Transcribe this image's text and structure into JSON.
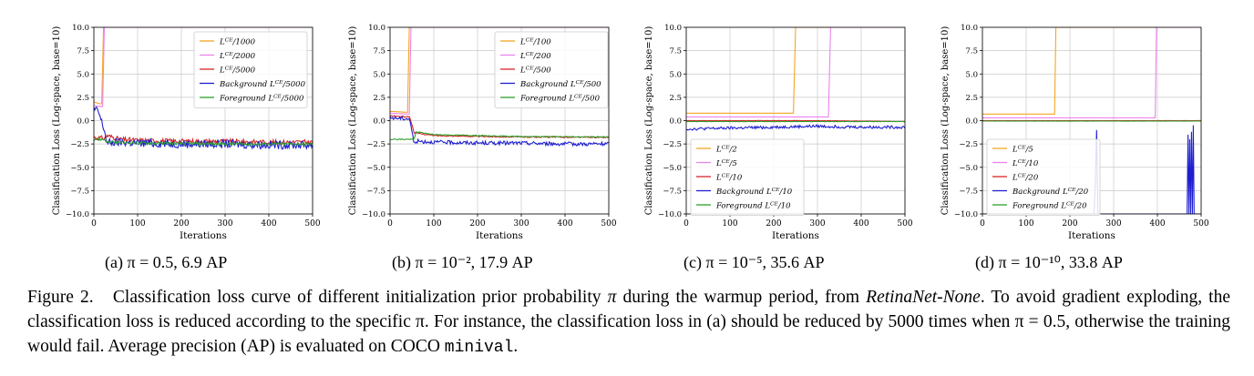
{
  "chart_data": [
    {
      "type": "line",
      "panel": "(a) π = 0.5, 6.9 AP",
      "xlabel": "Iterations",
      "ylabel": "Classification Loss (Log-space, base=10)",
      "xlim": [
        0,
        500
      ],
      "ylim": [
        -10,
        10
      ],
      "xticks": [
        0,
        100,
        200,
        300,
        400,
        500
      ],
      "yticks": [
        "−10.0",
        "−7.5",
        "−5.0",
        "−2.5",
        "0.0",
        "2.5",
        "5.0",
        "7.5",
        "10.0"
      ],
      "grid": true,
      "legend_position": "top-right",
      "series": [
        {
          "name": "L^CE/1000",
          "color": "#f5a623",
          "x": [
            0,
            14,
            18,
            22,
            500
          ],
          "y": [
            2.0,
            1.8,
            1.8,
            10,
            10
          ]
        },
        {
          "name": "L^CE/2000",
          "color": "#ee82ee",
          "x": [
            0,
            16,
            20,
            24,
            500
          ],
          "y": [
            1.6,
            1.5,
            1.5,
            10,
            10
          ]
        },
        {
          "name": "L^CE/5000",
          "color": "#d62728",
          "noise": 0.25,
          "x": [
            0,
            25,
            30,
            60,
            100,
            200,
            300,
            400,
            500
          ],
          "y": [
            -1.8,
            -1.9,
            -1.6,
            -2.0,
            -2.1,
            -2.2,
            -2.2,
            -2.3,
            -2.3
          ]
        },
        {
          "name": "Background L^CE/5000",
          "color": "#1f1fd0",
          "noise": 0.45,
          "x": [
            0,
            10,
            25,
            30,
            60,
            100,
            200,
            300,
            400,
            500
          ],
          "y": [
            1.2,
            1.0,
            -1.2,
            -2.4,
            -2.3,
            -2.4,
            -2.5,
            -2.5,
            -2.6,
            -2.6
          ]
        },
        {
          "name": "Foreground L^CE/5000",
          "color": "#2ca02c",
          "noise": 0.15,
          "x": [
            0,
            25,
            30,
            100,
            300,
            500
          ],
          "y": [
            -2.0,
            -2.0,
            -2.3,
            -2.4,
            -2.5,
            -2.5
          ]
        }
      ]
    },
    {
      "type": "line",
      "panel": "(b) π = 10⁻², 17.9 AP",
      "xlabel": "Iterations",
      "ylabel": "Classification Loss (Log-space, base=10)",
      "xlim": [
        0,
        500
      ],
      "ylim": [
        -10,
        10
      ],
      "xticks": [
        0,
        100,
        200,
        300,
        400,
        500
      ],
      "yticks": [
        "−10.0",
        "−7.5",
        "−5.0",
        "−2.5",
        "0.0",
        "2.5",
        "5.0",
        "7.5",
        "10.0"
      ],
      "grid": true,
      "legend_position": "top-right",
      "series": [
        {
          "name": "L^CE/100",
          "color": "#f5a623",
          "x": [
            0,
            36,
            40,
            44,
            500
          ],
          "y": [
            1.0,
            0.9,
            0.9,
            10,
            10
          ]
        },
        {
          "name": "L^CE/200",
          "color": "#ee82ee",
          "x": [
            0,
            40,
            44,
            48,
            500
          ],
          "y": [
            0.8,
            0.7,
            0.7,
            10,
            10
          ]
        },
        {
          "name": "L^CE/500",
          "color": "#d62728",
          "noise": 0.06,
          "x": [
            0,
            45,
            55,
            100,
            200,
            300,
            500
          ],
          "y": [
            0.5,
            0.4,
            -1.3,
            -1.6,
            -1.7,
            -1.75,
            -1.8
          ]
        },
        {
          "name": "Background L^CE/500",
          "color": "#1f1fd0",
          "noise": 0.2,
          "x": [
            0,
            45,
            55,
            60,
            100,
            200,
            300,
            400,
            500
          ],
          "y": [
            0.3,
            0.2,
            -2.5,
            -2.2,
            -2.3,
            -2.4,
            -2.4,
            -2.5,
            -2.5
          ]
        },
        {
          "name": "Foreground L^CE/500",
          "color": "#2ca02c",
          "noise": 0.05,
          "x": [
            0,
            55,
            60,
            100,
            200,
            300,
            500
          ],
          "y": [
            -2.0,
            -2.0,
            -1.2,
            -1.5,
            -1.6,
            -1.7,
            -1.75
          ]
        }
      ]
    },
    {
      "type": "line",
      "panel": "(c) π = 10⁻⁵, 35.6 AP",
      "xlabel": "Iterations",
      "ylabel": "Classification Loss (Log-space, base=10)",
      "xlim": [
        0,
        500
      ],
      "ylim": [
        -10,
        10
      ],
      "xticks": [
        0,
        100,
        200,
        300,
        400,
        500
      ],
      "yticks": [
        "−10.0",
        "−7.5",
        "−5.0",
        "−2.5",
        "0.0",
        "2.5",
        "5.0",
        "7.5",
        "10.0"
      ],
      "grid": true,
      "legend_position": "lower-left",
      "series": [
        {
          "name": "L^CE/2",
          "color": "#f5a623",
          "x": [
            0,
            245,
            250,
            500
          ],
          "y": [
            0.8,
            0.8,
            10,
            10
          ]
        },
        {
          "name": "L^CE/5",
          "color": "#ee82ee",
          "x": [
            0,
            325,
            330,
            500
          ],
          "y": [
            0.4,
            0.4,
            10,
            10
          ]
        },
        {
          "name": "L^CE/10",
          "color": "#d62728",
          "noise": 0.02,
          "x": [
            0,
            100,
            300,
            500
          ],
          "y": [
            0.0,
            0.0,
            0.0,
            -0.1
          ]
        },
        {
          "name": "Background L^CE/10",
          "color": "#1f1fd0",
          "noise": 0.15,
          "x": [
            0,
            100,
            200,
            300,
            400,
            500
          ],
          "y": [
            -0.9,
            -0.8,
            -0.7,
            -0.6,
            -0.7,
            -0.7
          ]
        },
        {
          "name": "Foreground L^CE/10",
          "color": "#2ca02c",
          "noise": 0.02,
          "x": [
            0,
            100,
            300,
            500
          ],
          "y": [
            -0.1,
            -0.1,
            -0.1,
            -0.1
          ]
        }
      ]
    },
    {
      "type": "line",
      "panel": "(d) π = 10⁻¹⁰, 33.8 AP",
      "xlabel": "Iterations",
      "ylabel": "Classification Loss (Log-space, base=10)",
      "xlim": [
        0,
        500
      ],
      "ylim": [
        -10,
        10
      ],
      "xticks": [
        0,
        100,
        200,
        300,
        400,
        500
      ],
      "yticks": [
        "−10.0",
        "−7.5",
        "−5.0",
        "−2.5",
        "0.0",
        "2.5",
        "5.0",
        "7.5",
        "10.0"
      ],
      "grid": true,
      "legend_position": "lower-left",
      "series": [
        {
          "name": "L^CE/5",
          "color": "#f5a623",
          "x": [
            0,
            165,
            168,
            500
          ],
          "y": [
            0.7,
            0.7,
            10,
            10
          ]
        },
        {
          "name": "L^CE/10",
          "color": "#ee82ee",
          "x": [
            0,
            395,
            398,
            500
          ],
          "y": [
            0.3,
            0.3,
            10,
            10
          ]
        },
        {
          "name": "L^CE/20",
          "color": "#d62728",
          "noise": 0.01,
          "x": [
            0,
            500
          ],
          "y": [
            0.0,
            0.0
          ]
        },
        {
          "name": "Background L^CE/20",
          "color": "#1f1fd0",
          "x": [
            0,
            255,
            258,
            261,
            264,
            468,
            470,
            472,
            474,
            476,
            478,
            480,
            482,
            484,
            486,
            500
          ],
          "y": [
            -10,
            -10,
            -7.0,
            -1.0,
            -10,
            -10,
            -1.5,
            -10,
            -2.0,
            -10,
            -1.2,
            -10,
            -0.5,
            -10,
            -10,
            -10
          ]
        },
        {
          "name": "Foreground L^CE/20",
          "color": "#2ca02c",
          "noise": 0.01,
          "x": [
            0,
            500
          ],
          "y": [
            -0.05,
            -0.05
          ]
        }
      ]
    }
  ],
  "figure_caption": {
    "label": "Figure 2.",
    "text_1": "Classification loss curve of different initialization prior probability",
    "symbol": "π",
    "text_2": "during the warmup period, from",
    "model": "RetinaNet-None",
    "text_3": ". To avoid gradient exploding, the classification loss is reduced according to the specific π. For instance, the classification loss in (a) should be reduced by 5000 times when π = 0.5, otherwise the training would fail. Average precision (AP) is evaluated on COCO",
    "dataset": "minival",
    "text_4": "."
  }
}
